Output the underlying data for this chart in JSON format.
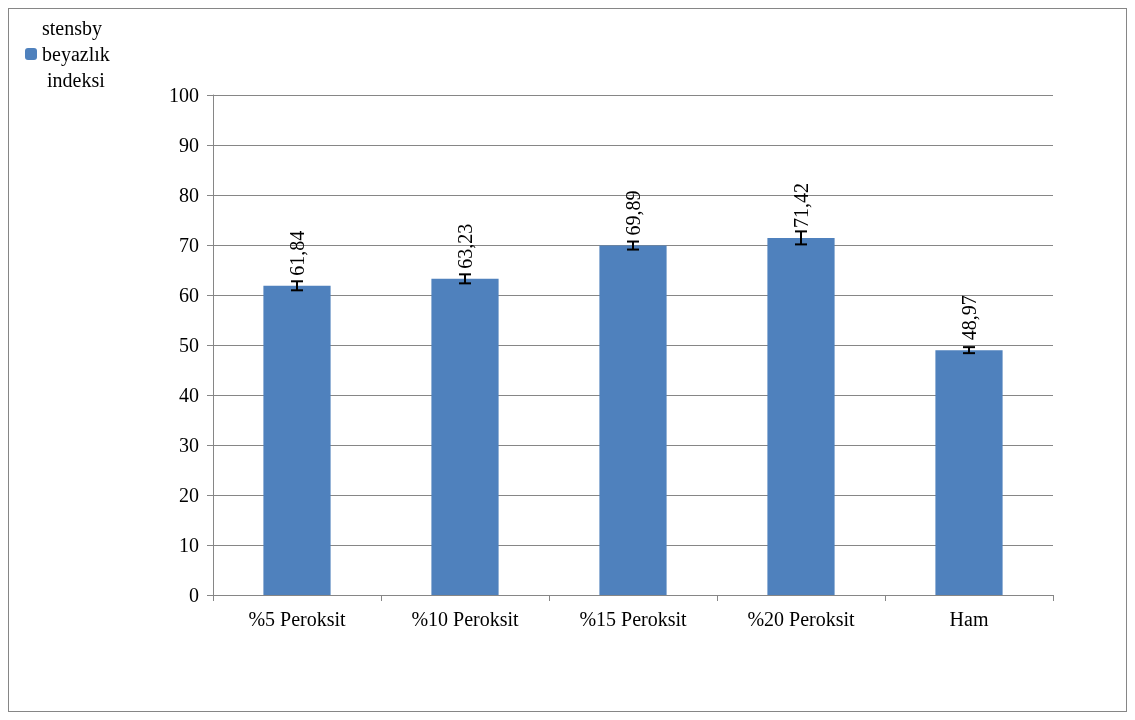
{
  "chart_data": {
    "type": "bar",
    "categories": [
      "%5 Peroksit",
      "%10 Peroksit",
      "%15 Peroksit",
      "%20 Peroksit",
      "Ham"
    ],
    "series": [
      {
        "name": "stensby beyazlık indeksi",
        "color": "#4f81bd",
        "values": [
          61.84,
          63.23,
          69.89,
          71.42,
          48.97
        ],
        "errors": [
          0.9,
          0.9,
          0.8,
          1.3,
          0.6
        ],
        "value_labels": [
          "61,84",
          "63,23",
          "69,89",
          "71,42",
          "48,97"
        ]
      }
    ],
    "ylim": [
      0,
      100
    ],
    "yticks": [
      0,
      10,
      20,
      30,
      40,
      50,
      60,
      70,
      80,
      90,
      100
    ],
    "grid": "y",
    "legend": "top left"
  }
}
